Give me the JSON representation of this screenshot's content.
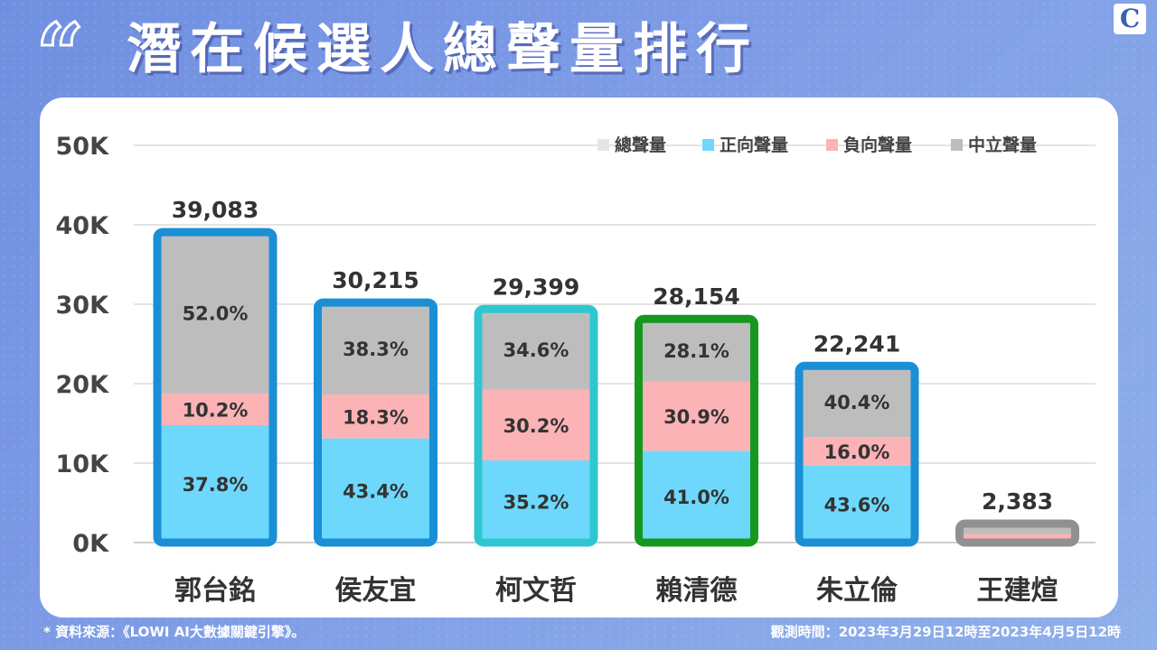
{
  "header": {
    "quote_mark": "“",
    "title": "潛在候選人總聲量排行",
    "logo": "C"
  },
  "footer": {
    "source": "* 資料來源：《LOWI AI大數據關鍵引擎》。",
    "period": "觀測時間：2023年3月29日12時至2023年4月5日12時"
  },
  "chart_data": {
    "type": "bar",
    "stacked": true,
    "categories": [
      "郭台銘",
      "侯友宜",
      "柯文哲",
      "賴清德",
      "朱立倫",
      "王建煊"
    ],
    "totals": [
      39083,
      30215,
      29399,
      28154,
      22241,
      2383
    ],
    "total_labels": [
      "39,083",
      "30,215",
      "29,399",
      "28,154",
      "22,241",
      "2,383"
    ],
    "series": [
      {
        "name": "正向聲量",
        "color": "#6dd8fb",
        "shares": [
          37.8,
          43.4,
          35.2,
          41.0,
          43.6,
          20.0
        ],
        "labels": [
          "37.8%",
          "43.4%",
          "35.2%",
          "41.0%",
          "43.6%",
          ""
        ]
      },
      {
        "name": "負向聲量",
        "color": "#fbb3b6",
        "shares": [
          10.2,
          18.3,
          30.2,
          30.9,
          16.0,
          25.0
        ],
        "labels": [
          "10.2%",
          "18.3%",
          "30.2%",
          "30.9%",
          "16.0%",
          ""
        ]
      },
      {
        "name": "中立聲量",
        "color": "#bdbdbd",
        "shares": [
          52.0,
          38.3,
          34.6,
          28.1,
          40.4,
          55.0
        ],
        "labels": [
          "52.0%",
          "38.3%",
          "34.6%",
          "28.1%",
          "40.4%",
          ""
        ]
      }
    ],
    "legend": [
      {
        "name": "總聲量",
        "color": "#e6e6e6"
      },
      {
        "name": "正向聲量",
        "color": "#6dd8fb"
      },
      {
        "name": "負向聲量",
        "color": "#fbb3b6"
      },
      {
        "name": "中立聲量",
        "color": "#bdbdbd"
      }
    ],
    "outline_colors": [
      "#1a8fd6",
      "#1a8fd6",
      "#2ec7cf",
      "#16971f",
      "#1a8fd6",
      "#909090"
    ],
    "yticks": [
      0,
      10000,
      20000,
      30000,
      40000,
      50000
    ],
    "ytick_labels": [
      "0K",
      "10K",
      "20K",
      "30K",
      "40K",
      "50K"
    ],
    "ylim": [
      0,
      50000
    ],
    "legend_position": "top-right",
    "grid": true
  }
}
